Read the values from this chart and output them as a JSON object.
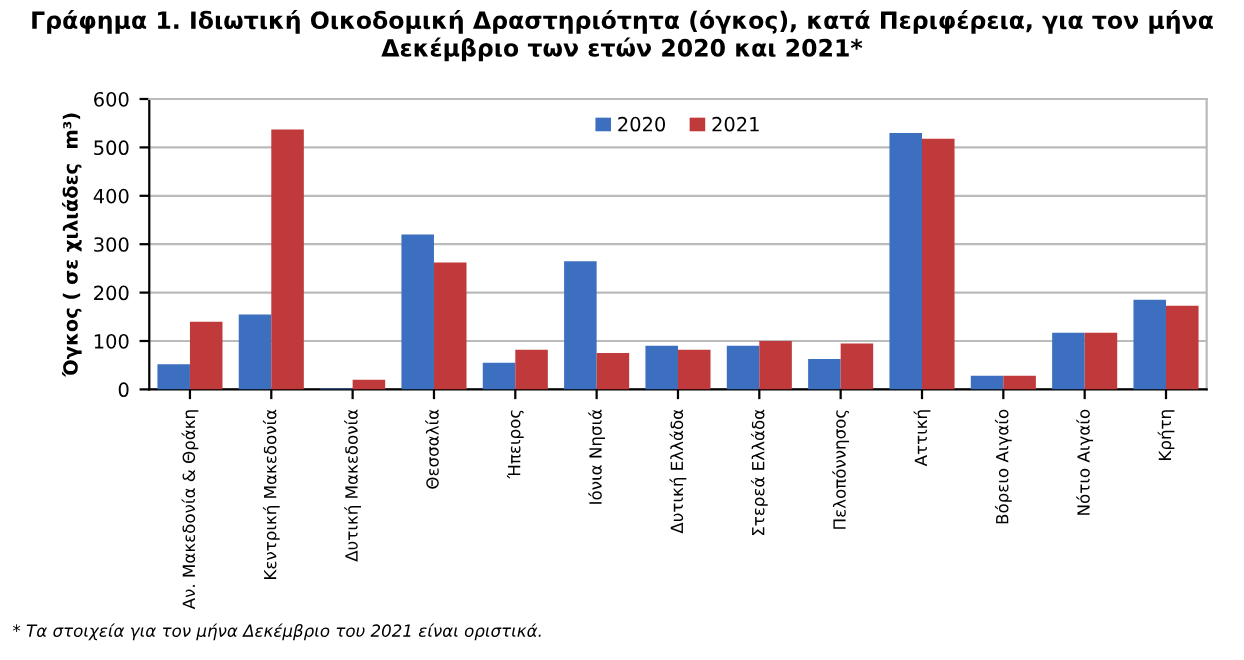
{
  "chart_data": {
    "type": "bar",
    "title": "Γράφημα 1. Ιδιωτική Οικοδομική Δραστηριότητα (όγκος), κατά Περιφέρεια, για τον μήνα\nΔεκέμβριο των ετών 2020 και 2021*",
    "ylabel": "Όγκος ( σε χιλιάδες  m³)",
    "categories": [
      "Αν. Μακεδονία & Θράκη",
      "Κεντρική Μακεδονία",
      "Δυτική Μακεδονία",
      "Θεσσαλία",
      "Ήπειρος",
      "Ιόνια Νησιά",
      "Δυτική Ελλάδα",
      "Στερεά Ελλάδα",
      "Πελοπόννησος",
      "Αττική",
      "Βόρειο Αιγαίο",
      "Νότιο Αιγαίο",
      "Κρήτη"
    ],
    "series": [
      {
        "name": "2020",
        "color": "#3c6fc0",
        "values": [
          52,
          155,
          2,
          320,
          55,
          265,
          90,
          90,
          63,
          530,
          28,
          117,
          185
        ]
      },
      {
        "name": "2021",
        "color": "#c0393b",
        "values": [
          140,
          537,
          20,
          262,
          82,
          75,
          82,
          100,
          95,
          518,
          28,
          117,
          173
        ]
      }
    ],
    "ylim": [
      0,
      600
    ],
    "yticks": [
      0,
      100,
      200,
      300,
      400,
      500,
      600
    ],
    "grid": "y",
    "legend": "top",
    "annotations": [
      "* Τα στοιχεία για τον μήνα Δεκέμβριο του 2021 είναι οριστικά."
    ]
  }
}
